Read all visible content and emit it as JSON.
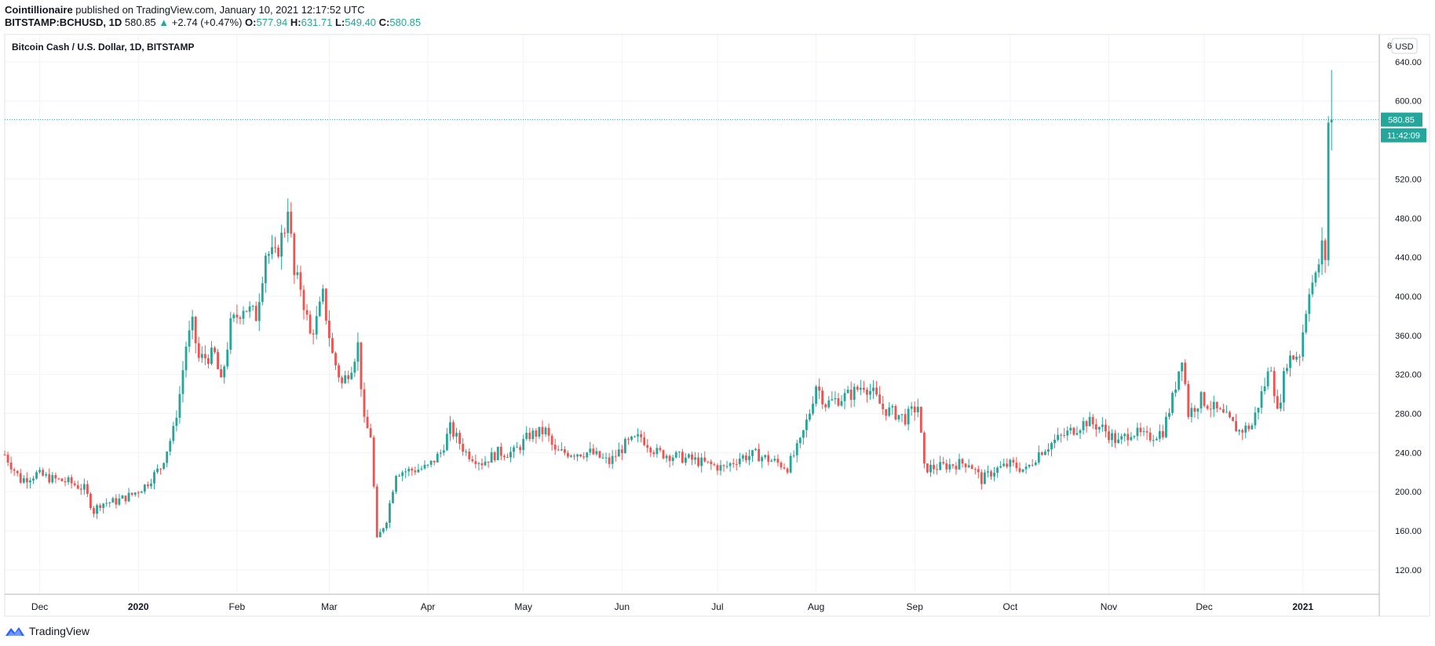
{
  "header": {
    "author": "Cointillionaire",
    "published_text": "published on TradingView.com, January 10, 2021 12:17:52 UTC",
    "symbol": "BITSTAMP:BCHUSD, 1D",
    "last": "580.85",
    "change": "+2.74 (+0.47%)",
    "open_label": "O:",
    "open": "577.94",
    "high_label": "H:",
    "high": "631.71",
    "low_label": "L:",
    "low": "549.40",
    "close_label": "C:",
    "close": "580.85"
  },
  "footer": {
    "brand": "TradingView"
  },
  "colors": {
    "up": "#26a69a",
    "down": "#ef5350",
    "grid": "#f0f3fa",
    "axis": "#b2b5be",
    "price_tag": "#26a69a"
  },
  "chart_data": {
    "type": "candlestick",
    "title": "Bitcoin Cash / U.S. Dollar, 1D, BITSTAMP",
    "currency": "USD",
    "y_ticks": [
      120,
      160,
      200,
      240,
      280,
      320,
      360,
      400,
      440,
      480,
      520,
      600,
      640
    ],
    "y_tick_labels": [
      "120.00",
      "160.00",
      "200.00",
      "240.00",
      "280.00",
      "320.00",
      "360.00",
      "400.00",
      "440.00",
      "480.00",
      "520.00",
      "600.00",
      "640.00"
    ],
    "top_cut_label": "6",
    "ylim": [
      95,
      668
    ],
    "x_range": [
      "2019-11-20",
      "2021-01-25"
    ],
    "x_ticks": [
      {
        "date": "2019-12-01",
        "label": "Dec",
        "bold": false
      },
      {
        "date": "2020-01-01",
        "label": "2020",
        "bold": true
      },
      {
        "date": "2020-02-01",
        "label": "Feb",
        "bold": false
      },
      {
        "date": "2020-03-01",
        "label": "Mar",
        "bold": false
      },
      {
        "date": "2020-04-01",
        "label": "Apr",
        "bold": false
      },
      {
        "date": "2020-05-01",
        "label": "May",
        "bold": false
      },
      {
        "date": "2020-06-01",
        "label": "Jun",
        "bold": false
      },
      {
        "date": "2020-07-01",
        "label": "Jul",
        "bold": false
      },
      {
        "date": "2020-08-01",
        "label": "Aug",
        "bold": false
      },
      {
        "date": "2020-09-01",
        "label": "Sep",
        "bold": false
      },
      {
        "date": "2020-10-01",
        "label": "Oct",
        "bold": false
      },
      {
        "date": "2020-11-01",
        "label": "Nov",
        "bold": false
      },
      {
        "date": "2020-12-01",
        "label": "Dec",
        "bold": false
      },
      {
        "date": "2021-01-01",
        "label": "2021",
        "bold": true
      }
    ],
    "last_price": 580.85,
    "last_price_label": "580.85",
    "countdown_label": "11:42:09",
    "grid": true,
    "close_series": [
      [
        "2019-11-20",
        238
      ],
      [
        "2019-11-25",
        212
      ],
      [
        "2019-11-30",
        218
      ],
      [
        "2019-12-05",
        213
      ],
      [
        "2019-12-10",
        210
      ],
      [
        "2019-12-15",
        203
      ],
      [
        "2019-12-18",
        180
      ],
      [
        "2019-12-20",
        188
      ],
      [
        "2019-12-25",
        190
      ],
      [
        "2019-12-30",
        197
      ],
      [
        "2020-01-03",
        206
      ],
      [
        "2020-01-08",
        225
      ],
      [
        "2020-01-12",
        262
      ],
      [
        "2020-01-14",
        300
      ],
      [
        "2020-01-16",
        350
      ],
      [
        "2020-01-18",
        370
      ],
      [
        "2020-01-20",
        336
      ],
      [
        "2020-01-25",
        340
      ],
      [
        "2020-01-27",
        310
      ],
      [
        "2020-01-30",
        370
      ],
      [
        "2020-02-03",
        390
      ],
      [
        "2020-02-07",
        380
      ],
      [
        "2020-02-10",
        445
      ],
      [
        "2020-02-13",
        440
      ],
      [
        "2020-02-16",
        470
      ],
      [
        "2020-02-17",
        495
      ],
      [
        "2020-02-19",
        420
      ],
      [
        "2020-02-21",
        410
      ],
      [
        "2020-02-24",
        360
      ],
      [
        "2020-02-26",
        375
      ],
      [
        "2020-02-28",
        400
      ],
      [
        "2020-03-02",
        340
      ],
      [
        "2020-03-05",
        310
      ],
      [
        "2020-03-08",
        330
      ],
      [
        "2020-03-10",
        350
      ],
      [
        "2020-03-12",
        270
      ],
      [
        "2020-03-14",
        258
      ],
      [
        "2020-03-16",
        150
      ],
      [
        "2020-03-19",
        172
      ],
      [
        "2020-03-22",
        220
      ],
      [
        "2020-03-27",
        222
      ],
      [
        "2020-04-01",
        225
      ],
      [
        "2020-04-05",
        240
      ],
      [
        "2020-04-08",
        265
      ],
      [
        "2020-04-13",
        240
      ],
      [
        "2020-04-18",
        230
      ],
      [
        "2020-04-23",
        240
      ],
      [
        "2020-04-28",
        240
      ],
      [
        "2020-05-03",
        258
      ],
      [
        "2020-05-08",
        262
      ],
      [
        "2020-05-11",
        240
      ],
      [
        "2020-05-16",
        240
      ],
      [
        "2020-05-22",
        240
      ],
      [
        "2020-05-28",
        230
      ],
      [
        "2020-06-02",
        248
      ],
      [
        "2020-06-07",
        256
      ],
      [
        "2020-06-12",
        240
      ],
      [
        "2020-06-18",
        236
      ],
      [
        "2020-06-24",
        232
      ],
      [
        "2020-06-28",
        228
      ],
      [
        "2020-07-03",
        224
      ],
      [
        "2020-07-08",
        235
      ],
      [
        "2020-07-13",
        238
      ],
      [
        "2020-07-18",
        232
      ],
      [
        "2020-07-23",
        225
      ],
      [
        "2020-07-27",
        250
      ],
      [
        "2020-07-30",
        282
      ],
      [
        "2020-08-01",
        310
      ],
      [
        "2020-08-04",
        290
      ],
      [
        "2020-08-08",
        295
      ],
      [
        "2020-08-12",
        300
      ],
      [
        "2020-08-16",
        310
      ],
      [
        "2020-08-19",
        300
      ],
      [
        "2020-08-22",
        285
      ],
      [
        "2020-08-26",
        280
      ],
      [
        "2020-08-29",
        275
      ],
      [
        "2020-09-02",
        288
      ],
      [
        "2020-09-04",
        224
      ],
      [
        "2020-09-08",
        225
      ],
      [
        "2020-09-13",
        228
      ],
      [
        "2020-09-18",
        230
      ],
      [
        "2020-09-22",
        212
      ],
      [
        "2020-09-26",
        222
      ],
      [
        "2020-10-01",
        228
      ],
      [
        "2020-10-06",
        222
      ],
      [
        "2020-10-10",
        240
      ],
      [
        "2020-10-15",
        252
      ],
      [
        "2020-10-20",
        262
      ],
      [
        "2020-10-25",
        272
      ],
      [
        "2020-10-30",
        265
      ],
      [
        "2020-11-04",
        250
      ],
      [
        "2020-11-08",
        262
      ],
      [
        "2020-11-13",
        255
      ],
      [
        "2020-11-18",
        262
      ],
      [
        "2020-11-21",
        295
      ],
      [
        "2020-11-24",
        340
      ],
      [
        "2020-11-26",
        280
      ],
      [
        "2020-11-30",
        295
      ],
      [
        "2020-12-04",
        285
      ],
      [
        "2020-12-08",
        275
      ],
      [
        "2020-12-12",
        262
      ],
      [
        "2020-12-16",
        268
      ],
      [
        "2020-12-19",
        300
      ],
      [
        "2020-12-22",
        330
      ],
      [
        "2020-12-24",
        280
      ],
      [
        "2020-12-27",
        335
      ],
      [
        "2020-12-31",
        342
      ],
      [
        "2021-01-03",
        410
      ],
      [
        "2021-01-05",
        418
      ],
      [
        "2021-01-07",
        450
      ],
      [
        "2021-01-08",
        440
      ],
      [
        "2021-01-09",
        578
      ],
      [
        "2021-01-10",
        580.85
      ]
    ]
  }
}
